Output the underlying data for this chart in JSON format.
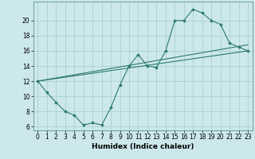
{
  "xlabel": "Humidex (Indice chaleur)",
  "bg_color": "#cce8ec",
  "grid_color": "#aacfd4",
  "line_color": "#2d7a6e",
  "xlim": [
    -0.5,
    23.5
  ],
  "ylim": [
    5.5,
    22.5
  ],
  "xticks": [
    0,
    1,
    2,
    3,
    4,
    5,
    6,
    7,
    8,
    9,
    10,
    11,
    12,
    13,
    14,
    15,
    16,
    17,
    18,
    19,
    20,
    21,
    22,
    23
  ],
  "yticks": [
    6,
    8,
    10,
    12,
    14,
    16,
    18,
    20
  ],
  "curve1_x": [
    0,
    1,
    2,
    3,
    4,
    5,
    6,
    7,
    8,
    9,
    10,
    11,
    12,
    13,
    14,
    15,
    16,
    17,
    18,
    19,
    20,
    21,
    22,
    23
  ],
  "curve1_y": [
    12,
    10.5,
    9.2,
    8,
    7.5,
    6.2,
    6.5,
    6.2,
    8.5,
    11.5,
    14,
    15.5,
    14,
    13.8,
    16,
    20,
    20,
    21.5,
    21,
    20,
    19.5,
    17,
    16.5,
    16
  ],
  "curve2_x": [
    0,
    23
  ],
  "curve2_y": [
    12,
    16.0
  ],
  "curve3_x": [
    0,
    23
  ],
  "curve3_y": [
    12,
    16.8
  ],
  "marker_size": 2.0,
  "line_width": 0.8,
  "tick_fontsize": 5.5,
  "xlabel_fontsize": 6.5
}
